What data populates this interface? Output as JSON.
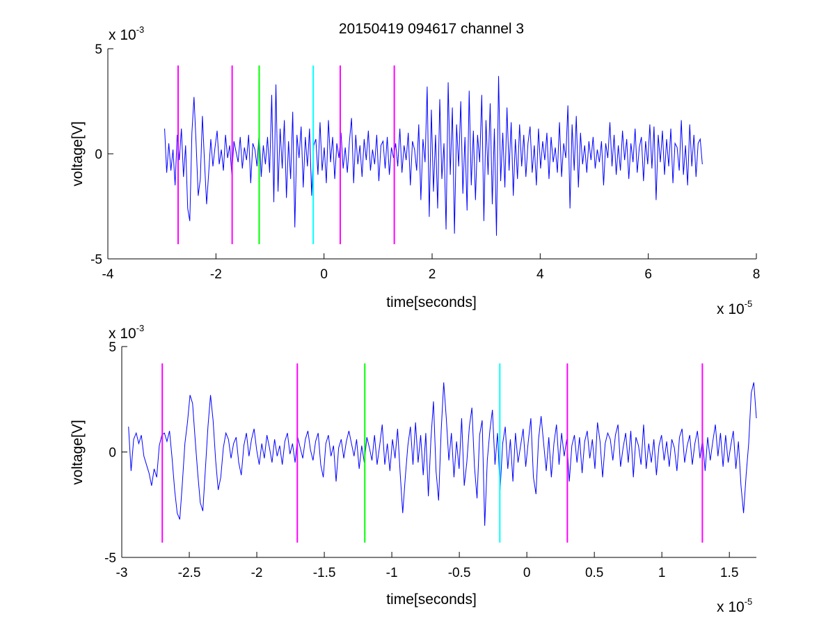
{
  "chart_data": [
    {
      "type": "line",
      "title": "20150419 094617 channel 3",
      "xlabel": "time[seconds]",
      "ylabel": "voltage[V]",
      "x_exponent": "x 10",
      "x_exponent_power": "-5",
      "y_exponent": "x 10",
      "y_exponent_power": "-3",
      "xlim": [
        -4,
        8
      ],
      "ylim": [
        -5,
        5
      ],
      "xticks": [
        "-4",
        "-2",
        "0",
        "2",
        "4",
        "6",
        "8"
      ],
      "yticks": [
        "-5",
        "0",
        "5"
      ],
      "grid": false,
      "series": [
        {
          "color": "#0000ff",
          "x_start": -2.95,
          "x_end": 7.0,
          "values": [
            1.2,
            -0.9,
            0.5,
            -0.8,
            0.2,
            -1.5,
            0.9,
            -0.3,
            1.2,
            -1.1,
            0.4,
            -2.6,
            -3.2,
            1.0,
            2.7,
            0.5,
            -2.0,
            -1.2,
            1.8,
            -0.4,
            -2.4,
            -0.9,
            0.7,
            -0.6,
            0.3,
            1.1,
            -0.5,
            0.2,
            -0.8,
            0.9,
            -0.2,
            0.4,
            -1.0,
            0.6,
            0.1,
            -0.4,
            0.8,
            -0.7,
            0.3,
            -0.3,
            0.9,
            -1.4,
            0.5,
            0.2,
            -0.6,
            1.0,
            -1.1,
            0.4,
            -0.5,
            0.8,
            -0.9,
            2.8,
            -2.3,
            3.3,
            -1.8,
            1.2,
            -0.7,
            1.6,
            -2.1,
            0.6,
            -1.2,
            2.0,
            -3.5,
            0.9,
            -0.2,
            1.3,
            -1.6,
            0.8,
            -0.6,
            1.2,
            -2.0,
            0.4,
            0.7,
            -1.0,
            1.5,
            -0.8,
            0.3,
            -1.4,
            1.6,
            -0.4,
            0.8,
            -1.2,
            0.5,
            -0.2,
            1.0,
            -0.7,
            0.3,
            -0.9,
            0.6,
            1.7,
            -1.4,
            0.9,
            -0.5,
            0.4,
            -1.1,
            0.7,
            -0.3,
            1.1,
            -0.8,
            0.2,
            -0.5,
            0.9,
            -1.3,
            0.4,
            0.6,
            -0.7,
            0.8,
            -1.0,
            0.3,
            -0.2,
            0.5,
            -0.6,
            1.2,
            -0.9,
            0.4,
            -0.3,
            1.0,
            -1.5,
            0.6,
            0.2,
            -0.8,
            1.4,
            -2.2,
            0.7,
            -0.4,
            3.2,
            -3.0,
            2.1,
            -1.8,
            0.9,
            -2.6,
            2.6,
            -1.2,
            0.5,
            -3.6,
            3.4,
            -1.0,
            2.2,
            -3.8,
            1.4,
            -0.6,
            2.5,
            -1.9,
            0.8,
            -2.7,
            3.0,
            -1.5,
            1.1,
            -2.2,
            0.9,
            -0.4,
            2.8,
            -3.2,
            1.6,
            -1.0,
            2.4,
            -2.4,
            1.2,
            -3.9,
            3.7,
            -1.3,
            1.0,
            -1.6,
            2.2,
            -0.8,
            1.5,
            -2.0,
            0.7,
            -1.2,
            1.4,
            -0.6,
            0.9,
            -1.1,
            0.5,
            1.3,
            -0.9,
            0.4,
            -1.5,
            1.2,
            -0.7,
            0.6,
            -0.3,
            1.0,
            -1.2,
            0.8,
            -0.4,
            0.3,
            -0.9,
            1.5,
            -1.1,
            0.5,
            -0.2,
            2.3,
            -2.6,
            1.4,
            -0.8,
            1.8,
            -1.6,
            1.0,
            -0.5,
            0.4,
            -0.9,
            0.6,
            -0.3,
            0.8,
            -0.7,
            0.2,
            -0.4,
            0.6,
            -1.5,
            0.5,
            -0.2,
            1.5,
            -0.6,
            0.9,
            -1.0,
            0.4,
            -0.8,
            1.1,
            -0.3,
            0.7,
            -1.2,
            0.5,
            -0.4,
            1.2,
            -0.9,
            0.3,
            0.8,
            -1.3,
            0.6,
            -0.5,
            1.4,
            -0.7,
            1.3,
            -2.2,
            0.9,
            -0.4,
            1.1,
            -1.0,
            0.7,
            -0.6,
            1.2,
            -1.4,
            0.5,
            0.3,
            -0.8,
            1.6,
            -1.0,
            0.4,
            -1.5,
            1.4,
            -0.6,
            0.9,
            -1.1,
            0.5,
            0.7,
            -0.5
          ]
        }
      ],
      "vlines": [
        {
          "x": -2.7,
          "color": "#ff00ff"
        },
        {
          "x": -1.7,
          "color": "#ff00ff"
        },
        {
          "x": -1.2,
          "color": "#00ff00"
        },
        {
          "x": -0.2,
          "color": "#00ffff"
        },
        {
          "x": 0.3,
          "color": "#ff00ff"
        },
        {
          "x": 1.3,
          "color": "#ff00ff"
        }
      ],
      "vline_range": [
        -4.3,
        4.2
      ]
    },
    {
      "type": "line",
      "title": "",
      "xlabel": "time[seconds]",
      "ylabel": "voltage[V]",
      "x_exponent": "x 10",
      "x_exponent_power": "-5",
      "y_exponent": "x 10",
      "y_exponent_power": "-3",
      "xlim": [
        -3.0,
        1.7
      ],
      "ylim": [
        -5,
        5
      ],
      "xticks": [
        "-3",
        "-2.5",
        "-2",
        "-1.5",
        "-1",
        "-0.5",
        "0",
        "0.5",
        "1",
        "1.5"
      ],
      "xtick_values": [
        -3,
        -2.5,
        -2,
        -1.5,
        -1,
        -0.5,
        0,
        0.5,
        1,
        1.5
      ],
      "yticks": [
        "-5",
        "0",
        "5"
      ],
      "grid": false,
      "series": [
        {
          "color": "#0000ff",
          "x_start": -2.95,
          "x_end": 1.7,
          "values": [
            1.2,
            -0.9,
            0.6,
            0.9,
            0.4,
            0.8,
            -0.2,
            -0.6,
            -1.0,
            -1.6,
            -0.8,
            -1.2,
            0.3,
            0.8,
            0.9,
            0.5,
            1.0,
            -0.3,
            -1.8,
            -2.9,
            -3.2,
            -1.5,
            0.4,
            1.4,
            2.7,
            2.3,
            0.6,
            -1.0,
            -2.4,
            -2.8,
            -0.8,
            1.2,
            2.7,
            1.5,
            -0.4,
            -1.8,
            -1.2,
            0.2,
            0.9,
            0.6,
            -0.3,
            0.4,
            0.7,
            -0.5,
            -1.1,
            0.3,
            0.9,
            -0.2,
            0.6,
            1.1,
            0.1,
            -0.6,
            0.4,
            -0.3,
            0.8,
            0.2,
            -0.5,
            0.6,
            -0.2,
            0.3,
            -0.6,
            0.5,
            0.9,
            -0.1,
            0.4,
            -0.5,
            0.7,
            0.2,
            -0.3,
            0.6,
            1.0,
            0.1,
            -0.4,
            0.5,
            0.9,
            -0.6,
            -1.2,
            0.4,
            0.8,
            -0.2,
            0.3,
            -1.4,
            0.2,
            0.6,
            -0.3,
            0.5,
            1.0,
            0.4,
            -0.2,
            0.6,
            -0.8,
            0.3,
            -0.5,
            0.7,
            0.2,
            -0.4,
            0.8,
            -0.6,
            0.3,
            1.3,
            -0.6,
            0.4,
            -0.9,
            0.6,
            -0.3,
            1.1,
            -1.0,
            -2.9,
            -1.2,
            0.3,
            1.2,
            -0.6,
            1.4,
            -0.5,
            0.8,
            -1.1,
            0.9,
            -2.1,
            0.6,
            2.4,
            -0.9,
            -2.3,
            1.0,
            3.3,
            1.6,
            -0.4,
            0.9,
            -1.2,
            0.5,
            -0.8,
            1.6,
            -1.6,
            -0.5,
            1.2,
            2.1,
            -0.7,
            -2.2,
            0.8,
            1.5,
            -3.5,
            -0.4,
            1.0,
            2.0,
            -0.6,
            0.9,
            -1.8,
            0.4,
            1.2,
            -0.8,
            0.6,
            -1.4,
            0.9,
            -0.5,
            0.3,
            1.1,
            -0.7,
            0.5,
            1.6,
            -1.2,
            -2.0,
            0.6,
            1.7,
            0.4,
            -0.9,
            0.7,
            -1.2,
            0.4,
            1.3,
            -0.6,
            0.9,
            -0.2,
            0.6,
            -1.4,
            0.3,
            0.8,
            -0.5,
            0.7,
            -1.0,
            0.5,
            1.0,
            -0.3,
            0.6,
            -0.8,
            1.4,
            0.5,
            -1.2,
            0.4,
            0.9,
            0.6,
            -0.4,
            0.8,
            1.3,
            -0.7,
            0.2,
            0.9,
            -0.5,
            1.0,
            -1.2,
            0.7,
            0.3,
            -0.6,
            1.3,
            -0.8,
            0.4,
            -0.5,
            0.6,
            -1.1,
            0.3,
            0.8,
            -0.4,
            0.5,
            -0.7,
            0.6,
            0.2,
            -0.9,
            0.7,
            1.1,
            -0.5,
            0.3,
            0.8,
            -0.6,
            0.4,
            1.0,
            -0.3,
            0.6,
            -0.9,
            0.7,
            -0.4,
            0.5,
            1.3,
            -0.2,
            0.9,
            -0.7,
            0.8,
            -0.5,
            0.3,
            1.0,
            -0.8,
            0.5,
            -1.6,
            -2.9,
            -1.1,
            0.4,
            2.8,
            3.3,
            1.6
          ]
        }
      ],
      "vlines": [
        {
          "x": -2.7,
          "color": "#ff00ff"
        },
        {
          "x": -1.7,
          "color": "#ff00ff"
        },
        {
          "x": -1.2,
          "color": "#00ff00"
        },
        {
          "x": -0.2,
          "color": "#00ffff"
        },
        {
          "x": 0.3,
          "color": "#ff00ff"
        },
        {
          "x": 1.3,
          "color": "#ff00ff"
        }
      ],
      "vline_range": [
        -4.3,
        4.2
      ]
    }
  ]
}
